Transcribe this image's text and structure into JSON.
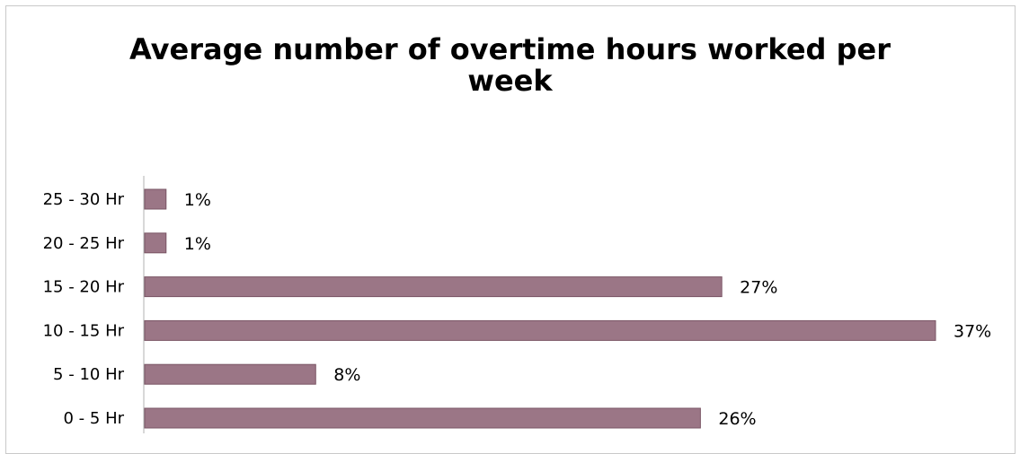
{
  "chart_data": {
    "type": "bar",
    "orientation": "horizontal",
    "title": "Average number of overtime hours worked per week",
    "categories": [
      "25 - 30 Hr",
      "20 - 25 Hr",
      "15 - 20 Hr",
      "10 - 15 Hr",
      "5 - 10 Hr",
      "0 - 5 Hr"
    ],
    "values": [
      1,
      1,
      27,
      37,
      8,
      26
    ],
    "value_labels": [
      "1%",
      "1%",
      "27%",
      "37%",
      "8%",
      "26%"
    ],
    "xlabel": "",
    "ylabel": "",
    "xlim": [
      0,
      37
    ],
    "grid": false,
    "legend": "none",
    "bar_color": "#9b7686",
    "bar_edge_color": "#7a5565"
  }
}
